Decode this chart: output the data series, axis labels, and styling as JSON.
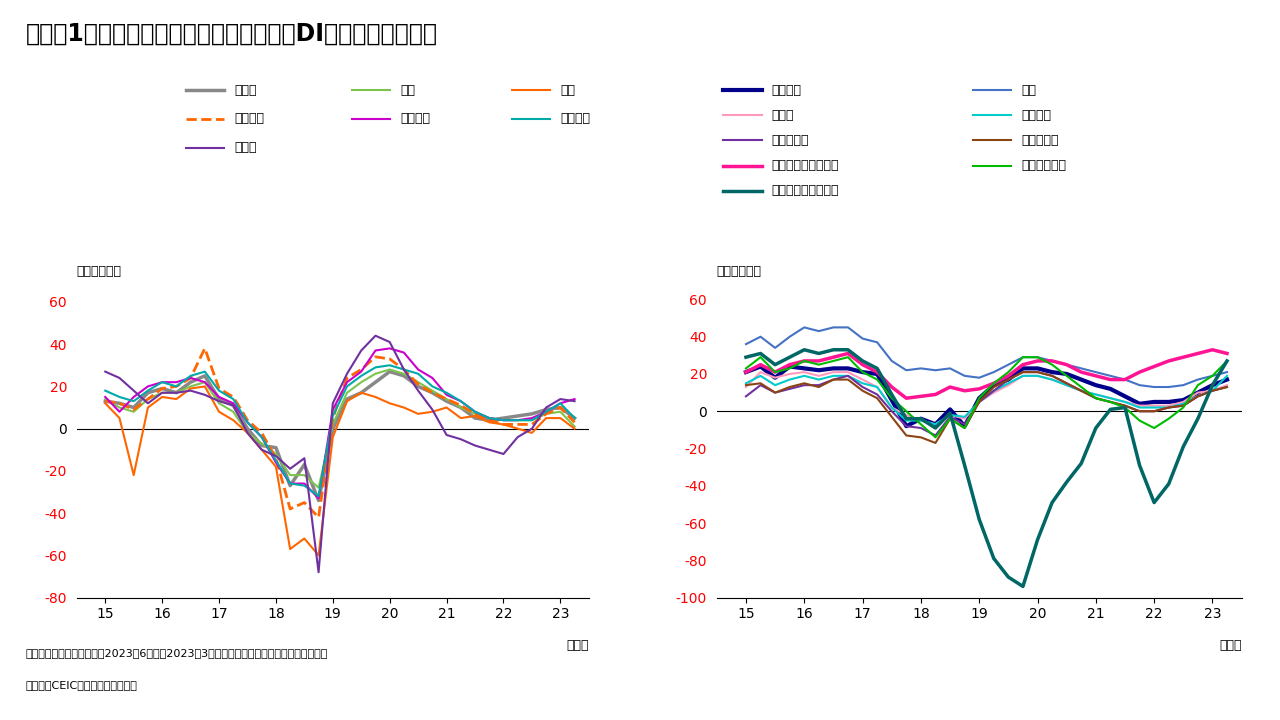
{
  "title": "（図表1）日本：日銀短観による業況判断DI（大企業ベース）",
  "footnote1": "（注）四半期ごとの計数。2023年6月分は2023年3月における業況判断（先行き）の計数。",
  "footnote2": "（出所）CEICよりインベスコ作成",
  "ylabel": "（ポイント）",
  "xlabel": "（年）",
  "x_ticks": [
    15,
    16,
    17,
    18,
    19,
    20,
    21,
    22,
    23
  ],
  "left_ylim": [
    -80,
    70
  ],
  "left_yticks": [
    -80,
    -60,
    -40,
    -20,
    0,
    20,
    40,
    60
  ],
  "right_ylim": [
    -100,
    70
  ],
  "right_yticks": [
    -100,
    -80,
    -60,
    -40,
    -20,
    0,
    20,
    40,
    60
  ],
  "left_series": [
    {
      "name": "製造業",
      "color": "#888888",
      "linestyle": "solid",
      "linewidth": 2.5,
      "data": [
        13,
        12,
        10,
        17,
        19,
        17,
        22,
        25,
        14,
        11,
        0,
        -8,
        -9,
        -27,
        -17,
        -34,
        0,
        14,
        17,
        22,
        27,
        25,
        20,
        17,
        13,
        10,
        5,
        4,
        5,
        6,
        7,
        9,
        10,
        5
      ]
    },
    {
      "name": "化学",
      "color": "#7DC44E",
      "linestyle": "solid",
      "linewidth": 1.5,
      "data": [
        14,
        10,
        8,
        14,
        17,
        17,
        20,
        22,
        12,
        8,
        -2,
        -7,
        -12,
        -22,
        -22,
        -28,
        2,
        17,
        22,
        26,
        28,
        26,
        22,
        18,
        14,
        10,
        7,
        5,
        4,
        4,
        4,
        7,
        8,
        1
      ]
    },
    {
      "name": "鉄鋼",
      "color": "#FF6600",
      "linestyle": "solid",
      "linewidth": 1.5,
      "data": [
        12,
        5,
        -22,
        10,
        15,
        14,
        19,
        20,
        8,
        4,
        -2,
        -10,
        -18,
        -57,
        -52,
        -60,
        -4,
        13,
        17,
        15,
        12,
        10,
        7,
        8,
        10,
        5,
        6,
        3,
        2,
        0,
        -2,
        5,
        5,
        0
      ]
    },
    {
      "name": "非鉄金属",
      "color": "#FF6600",
      "linestyle": "dashed",
      "linewidth": 2.0,
      "data": [
        13,
        12,
        9,
        14,
        19,
        20,
        24,
        38,
        19,
        15,
        4,
        -2,
        -14,
        -38,
        -35,
        -42,
        5,
        24,
        28,
        34,
        33,
        28,
        21,
        17,
        14,
        11,
        7,
        4,
        2,
        2,
        2,
        7,
        10,
        3
      ]
    },
    {
      "name": "一般機械",
      "color": "#CC00CC",
      "linestyle": "solid",
      "linewidth": 1.5,
      "data": [
        15,
        8,
        15,
        20,
        22,
        22,
        24,
        22,
        15,
        12,
        3,
        -4,
        -16,
        -26,
        -26,
        -33,
        9,
        22,
        27,
        37,
        38,
        36,
        28,
        24,
        16,
        13,
        8,
        5,
        4,
        4,
        5,
        8,
        12,
        14
      ]
    },
    {
      "name": "電気機械",
      "color": "#00AAAA",
      "linestyle": "solid",
      "linewidth": 1.5,
      "data": [
        18,
        15,
        13,
        18,
        22,
        20,
        25,
        27,
        18,
        14,
        3,
        -4,
        -15,
        -26,
        -27,
        -32,
        6,
        20,
        25,
        29,
        30,
        28,
        26,
        20,
        17,
        13,
        8,
        5,
        4,
        4,
        4,
        8,
        12,
        5
      ]
    },
    {
      "name": "自動車",
      "color": "#7030A0",
      "linestyle": "solid",
      "linewidth": 1.5,
      "data": [
        27,
        24,
        18,
        12,
        17,
        17,
        18,
        16,
        13,
        11,
        -2,
        -10,
        -13,
        -19,
        -14,
        -68,
        12,
        26,
        37,
        44,
        41,
        28,
        18,
        9,
        -3,
        -5,
        -8,
        -10,
        -12,
        -4,
        0,
        10,
        14,
        13
      ]
    }
  ],
  "right_series": [
    {
      "name": "非製造業",
      "color": "#00008B",
      "linestyle": "solid",
      "linewidth": 3.0,
      "data": [
        21,
        24,
        18,
        24,
        23,
        22,
        23,
        23,
        21,
        20,
        6,
        -8,
        -4,
        -7,
        1,
        -8,
        7,
        14,
        17,
        23,
        23,
        21,
        20,
        17,
        14,
        12,
        8,
        4,
        5,
        5,
        6,
        10,
        14,
        17
      ]
    },
    {
      "name": "建設",
      "color": "#4472C4",
      "linestyle": "solid",
      "linewidth": 1.5,
      "data": [
        36,
        40,
        34,
        40,
        45,
        43,
        45,
        45,
        39,
        37,
        27,
        22,
        23,
        22,
        23,
        19,
        18,
        21,
        25,
        29,
        29,
        27,
        25,
        23,
        21,
        19,
        17,
        14,
        13,
        13,
        14,
        17,
        19,
        21
      ]
    },
    {
      "name": "不動産",
      "color": "#FF99BB",
      "linestyle": "solid",
      "linewidth": 1.5,
      "data": [
        13,
        21,
        18,
        20,
        21,
        19,
        21,
        21,
        17,
        13,
        2,
        -2,
        -5,
        -7,
        -2,
        -4,
        5,
        10,
        14,
        19,
        19,
        17,
        14,
        11,
        9,
        7,
        5,
        3,
        3,
        3,
        5,
        10,
        11,
        14
      ]
    },
    {
      "name": "物品賃貸",
      "color": "#00CCCC",
      "linestyle": "solid",
      "linewidth": 1.5,
      "data": [
        15,
        19,
        14,
        17,
        19,
        17,
        19,
        19,
        15,
        13,
        2,
        -5,
        -5,
        -7,
        -2,
        -3,
        5,
        11,
        15,
        19,
        19,
        17,
        14,
        11,
        9,
        7,
        5,
        2,
        2,
        2,
        4,
        8,
        11,
        19
      ]
    },
    {
      "name": "卸売・小売",
      "color": "#7030A0",
      "linestyle": "solid",
      "linewidth": 1.5,
      "data": [
        8,
        14,
        10,
        12,
        14,
        14,
        17,
        19,
        13,
        9,
        0,
        -8,
        -9,
        -13,
        -3,
        -7,
        5,
        11,
        17,
        21,
        21,
        19,
        15,
        11,
        7,
        5,
        3,
        0,
        0,
        2,
        3,
        8,
        11,
        13
      ]
    },
    {
      "name": "運輸・郵便",
      "color": "#8B4513",
      "linestyle": "solid",
      "linewidth": 1.5,
      "data": [
        14,
        15,
        10,
        13,
        15,
        13,
        17,
        17,
        11,
        7,
        -3,
        -13,
        -14,
        -17,
        -4,
        -9,
        5,
        13,
        17,
        21,
        21,
        19,
        15,
        11,
        7,
        5,
        3,
        0,
        0,
        2,
        3,
        8,
        11,
        13
      ]
    },
    {
      "name": "通信・情報サービス",
      "color": "#FF1493",
      "linestyle": "solid",
      "linewidth": 2.5,
      "data": [
        21,
        25,
        21,
        25,
        27,
        27,
        29,
        31,
        25,
        21,
        13,
        7,
        8,
        9,
        13,
        11,
        12,
        15,
        19,
        25,
        27,
        27,
        25,
        21,
        19,
        17,
        17,
        21,
        24,
        27,
        29,
        31,
        33,
        31
      ]
    },
    {
      "name": "対人サービス",
      "color": "#00BB00",
      "linestyle": "solid",
      "linewidth": 1.5,
      "data": [
        23,
        29,
        21,
        23,
        27,
        25,
        27,
        29,
        21,
        17,
        7,
        0,
        -7,
        -14,
        -4,
        -9,
        7,
        15,
        21,
        29,
        29,
        25,
        19,
        13,
        7,
        5,
        2,
        -5,
        -9,
        -4,
        2,
        14,
        19,
        27
      ]
    },
    {
      "name": "宿泊・飲食サービス",
      "color": "#006666",
      "linestyle": "solid",
      "linewidth": 2.5,
      "data": [
        29,
        31,
        25,
        29,
        33,
        31,
        33,
        33,
        27,
        23,
        9,
        -4,
        -4,
        -9,
        -1,
        -29,
        -58,
        -79,
        -89,
        -94,
        -69,
        -49,
        -38,
        -28,
        -9,
        1,
        2,
        -29,
        -49,
        -39,
        -19,
        -4,
        14,
        27
      ]
    }
  ],
  "left_legend": [
    {
      "name": "製造業",
      "color": "#888888",
      "linestyle": "solid",
      "linewidth": 2.5
    },
    {
      "name": "化学",
      "color": "#7DC44E",
      "linestyle": "solid",
      "linewidth": 1.5
    },
    {
      "name": "鉄鋼",
      "color": "#FF6600",
      "linestyle": "solid",
      "linewidth": 1.5
    },
    {
      "name": "非鉄金属",
      "color": "#FF6600",
      "linestyle": "dashed",
      "linewidth": 2.0
    },
    {
      "name": "一般機械",
      "color": "#CC00CC",
      "linestyle": "solid",
      "linewidth": 1.5
    },
    {
      "name": "電気機械",
      "color": "#00AAAA",
      "linestyle": "solid",
      "linewidth": 1.5
    },
    {
      "name": "自動車",
      "color": "#7030A0",
      "linestyle": "solid",
      "linewidth": 1.5
    }
  ],
  "right_legend": [
    {
      "name": "非製造業",
      "color": "#00008B",
      "linestyle": "solid",
      "linewidth": 3.0
    },
    {
      "name": "建設",
      "color": "#4472C4",
      "linestyle": "solid",
      "linewidth": 1.5
    },
    {
      "name": "不動産",
      "color": "#FF99BB",
      "linestyle": "solid",
      "linewidth": 1.5
    },
    {
      "name": "物品賃貸",
      "color": "#00CCCC",
      "linestyle": "solid",
      "linewidth": 1.5
    },
    {
      "name": "卸売・小売",
      "color": "#7030A0",
      "linestyle": "solid",
      "linewidth": 1.5
    },
    {
      "name": "運輸・郵便",
      "color": "#8B4513",
      "linestyle": "solid",
      "linewidth": 1.5
    },
    {
      "name": "通信・情報サービス",
      "color": "#FF1493",
      "linestyle": "solid",
      "linewidth": 2.5
    },
    {
      "name": "対人サービス",
      "color": "#00BB00",
      "linestyle": "solid",
      "linewidth": 1.5
    },
    {
      "name": "宿泊・飲食サービス",
      "color": "#006666",
      "linestyle": "solid",
      "linewidth": 2.5
    }
  ]
}
